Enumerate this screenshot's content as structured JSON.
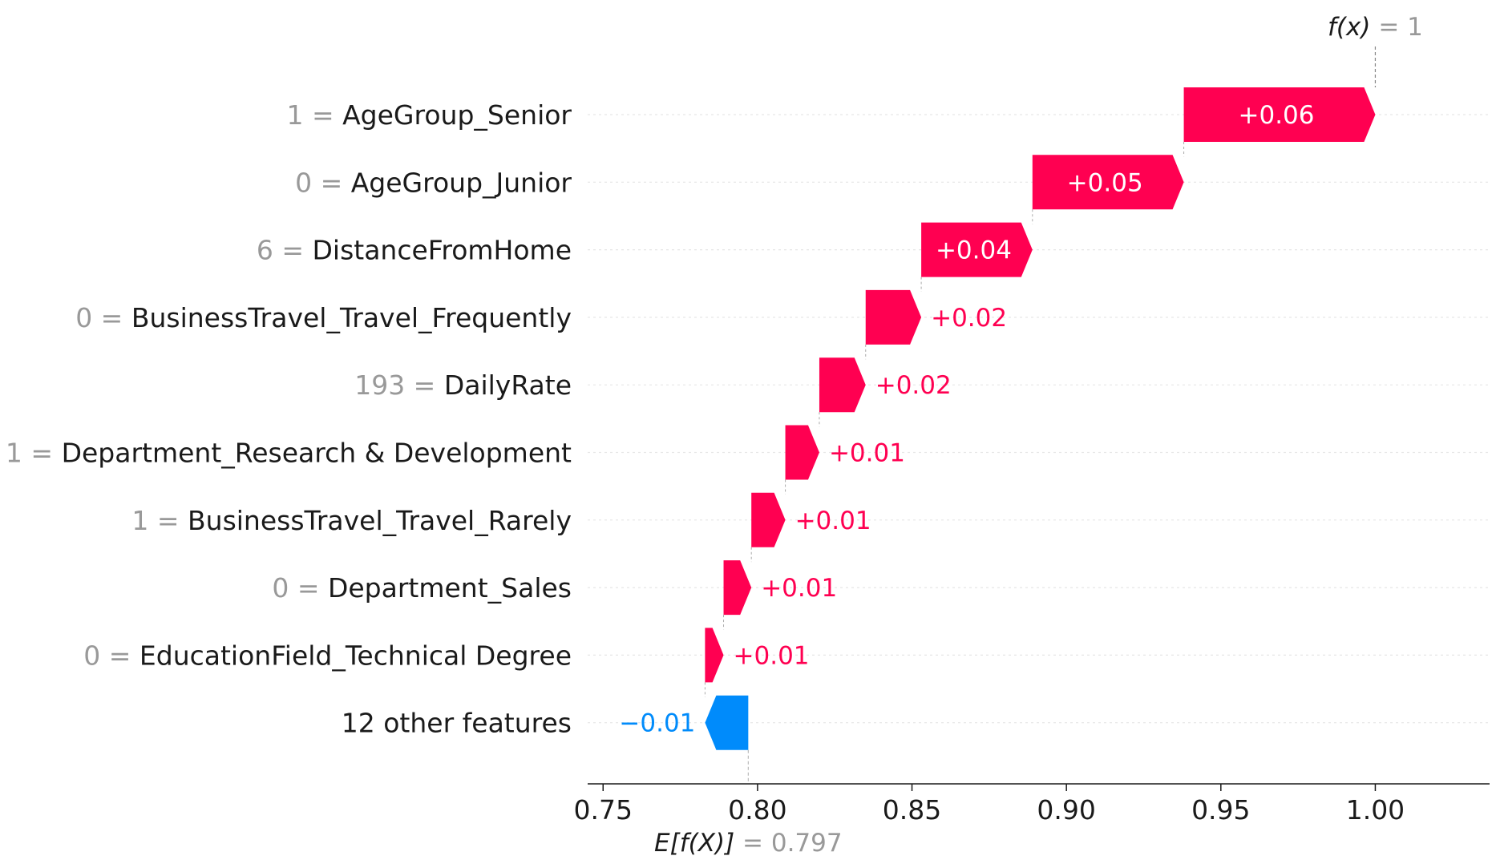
{
  "chart_data": {
    "type": "waterfall",
    "base_value": 0.797,
    "base_value_label": "0.797",
    "base_value_prefix": "E[f(X)]",
    "output_value": 1,
    "output_value_label": "1",
    "output_value_prefix": "f(x)",
    "xlim": [
      0.745,
      1.037
    ],
    "xticks": [
      0.75,
      0.8,
      0.85,
      0.9,
      0.95,
      1.0
    ],
    "xtick_labels": [
      "0.75",
      "0.80",
      "0.85",
      "0.90",
      "0.95",
      "1.00"
    ],
    "features": [
      {
        "value": "1",
        "name": "AgeGroup_Senior",
        "start": 0.938,
        "end": 1.0,
        "label": "+0.06"
      },
      {
        "value": "0",
        "name": "AgeGroup_Junior",
        "start": 0.889,
        "end": 0.938,
        "label": "+0.05"
      },
      {
        "value": "6",
        "name": "DistanceFromHome",
        "start": 0.853,
        "end": 0.889,
        "label": "+0.04"
      },
      {
        "value": "0",
        "name": "BusinessTravel_Travel_Frequently",
        "start": 0.835,
        "end": 0.853,
        "label": "+0.02"
      },
      {
        "value": "193",
        "name": "DailyRate",
        "start": 0.82,
        "end": 0.835,
        "label": "+0.02"
      },
      {
        "value": "1",
        "name": "Department_Research & Development",
        "start": 0.809,
        "end": 0.82,
        "label": "+0.01"
      },
      {
        "value": "1",
        "name": "BusinessTravel_Travel_Rarely",
        "start": 0.798,
        "end": 0.809,
        "label": "+0.01"
      },
      {
        "value": "0",
        "name": "Department_Sales",
        "start": 0.789,
        "end": 0.798,
        "label": "+0.01"
      },
      {
        "value": "0",
        "name": "EducationField_Technical Degree",
        "start": 0.783,
        "end": 0.789,
        "label": "+0.01"
      },
      {
        "value": "",
        "name": "12 other features",
        "start": 0.797,
        "end": 0.783,
        "label": "−0.01"
      }
    ],
    "colors": {
      "positive": "#ff0051",
      "negative": "#008bfb",
      "text": "#1a1a1a",
      "muted": "#999999",
      "grid": "#cccccc"
    }
  }
}
